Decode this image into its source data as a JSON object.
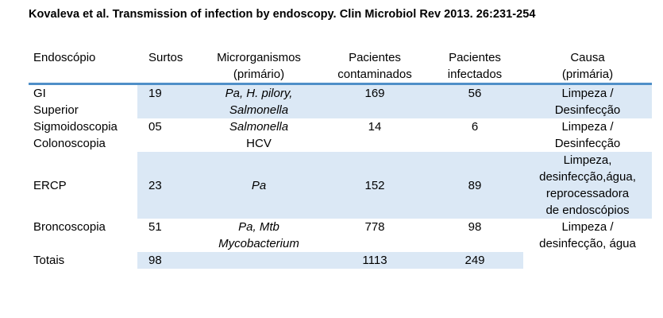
{
  "title": "Kovaleva et al. Transmission of infection by endoscopy.  Clin Microbiol Rev 2013. 26:231-254",
  "headers": {
    "endoscopio": "Endoscópio",
    "surtos": "Surtos",
    "micro_l1": "Microrganismos",
    "micro_l2": "(primário)",
    "pc_l1": "Pacientes",
    "pc_l2": "contaminados",
    "pi_l1": "Pacientes",
    "pi_l2": "infectados",
    "causa_l1": "Causa",
    "causa_l2": "(primária)"
  },
  "rows": [
    {
      "endo": [
        "GI",
        "Superior"
      ],
      "surtos": "19",
      "micro": [
        "Pa, H. pilory,",
        "Salmonella"
      ],
      "contaminados": "169",
      "infectados": "56",
      "causa": [
        "Limpeza /",
        "Desinfecção"
      ]
    },
    {
      "endo": [
        "Sigmoidoscopia",
        "Colonoscopia"
      ],
      "surtos": "05",
      "micro": [
        "Salmonella",
        "HCV"
      ],
      "contaminados": "14",
      "infectados": "6",
      "causa": [
        "Limpeza /",
        "Desinfecção"
      ]
    },
    {
      "endo": [
        "ERCP"
      ],
      "surtos": "23",
      "micro": [
        "Pa"
      ],
      "contaminados": "152",
      "infectados": "89",
      "causa": [
        "Limpeza,",
        "desinfecção,água,",
        "reprocessadora",
        "de endoscópios"
      ]
    },
    {
      "endo": [
        "Broncoscopia"
      ],
      "surtos": "51",
      "micro": [
        "Pa, Mtb",
        "Mycobacterium"
      ],
      "contaminados": "778",
      "infectados": "98",
      "causa": [
        "Limpeza /",
        "desinfecção, água"
      ]
    },
    {
      "endo": [
        "Totais"
      ],
      "surtos": "98",
      "micro": [],
      "contaminados": "1113",
      "infectados": "249",
      "causa": []
    }
  ],
  "colors": {
    "header_rule": "#4f8fc8",
    "shade": "#dbe8f5"
  }
}
